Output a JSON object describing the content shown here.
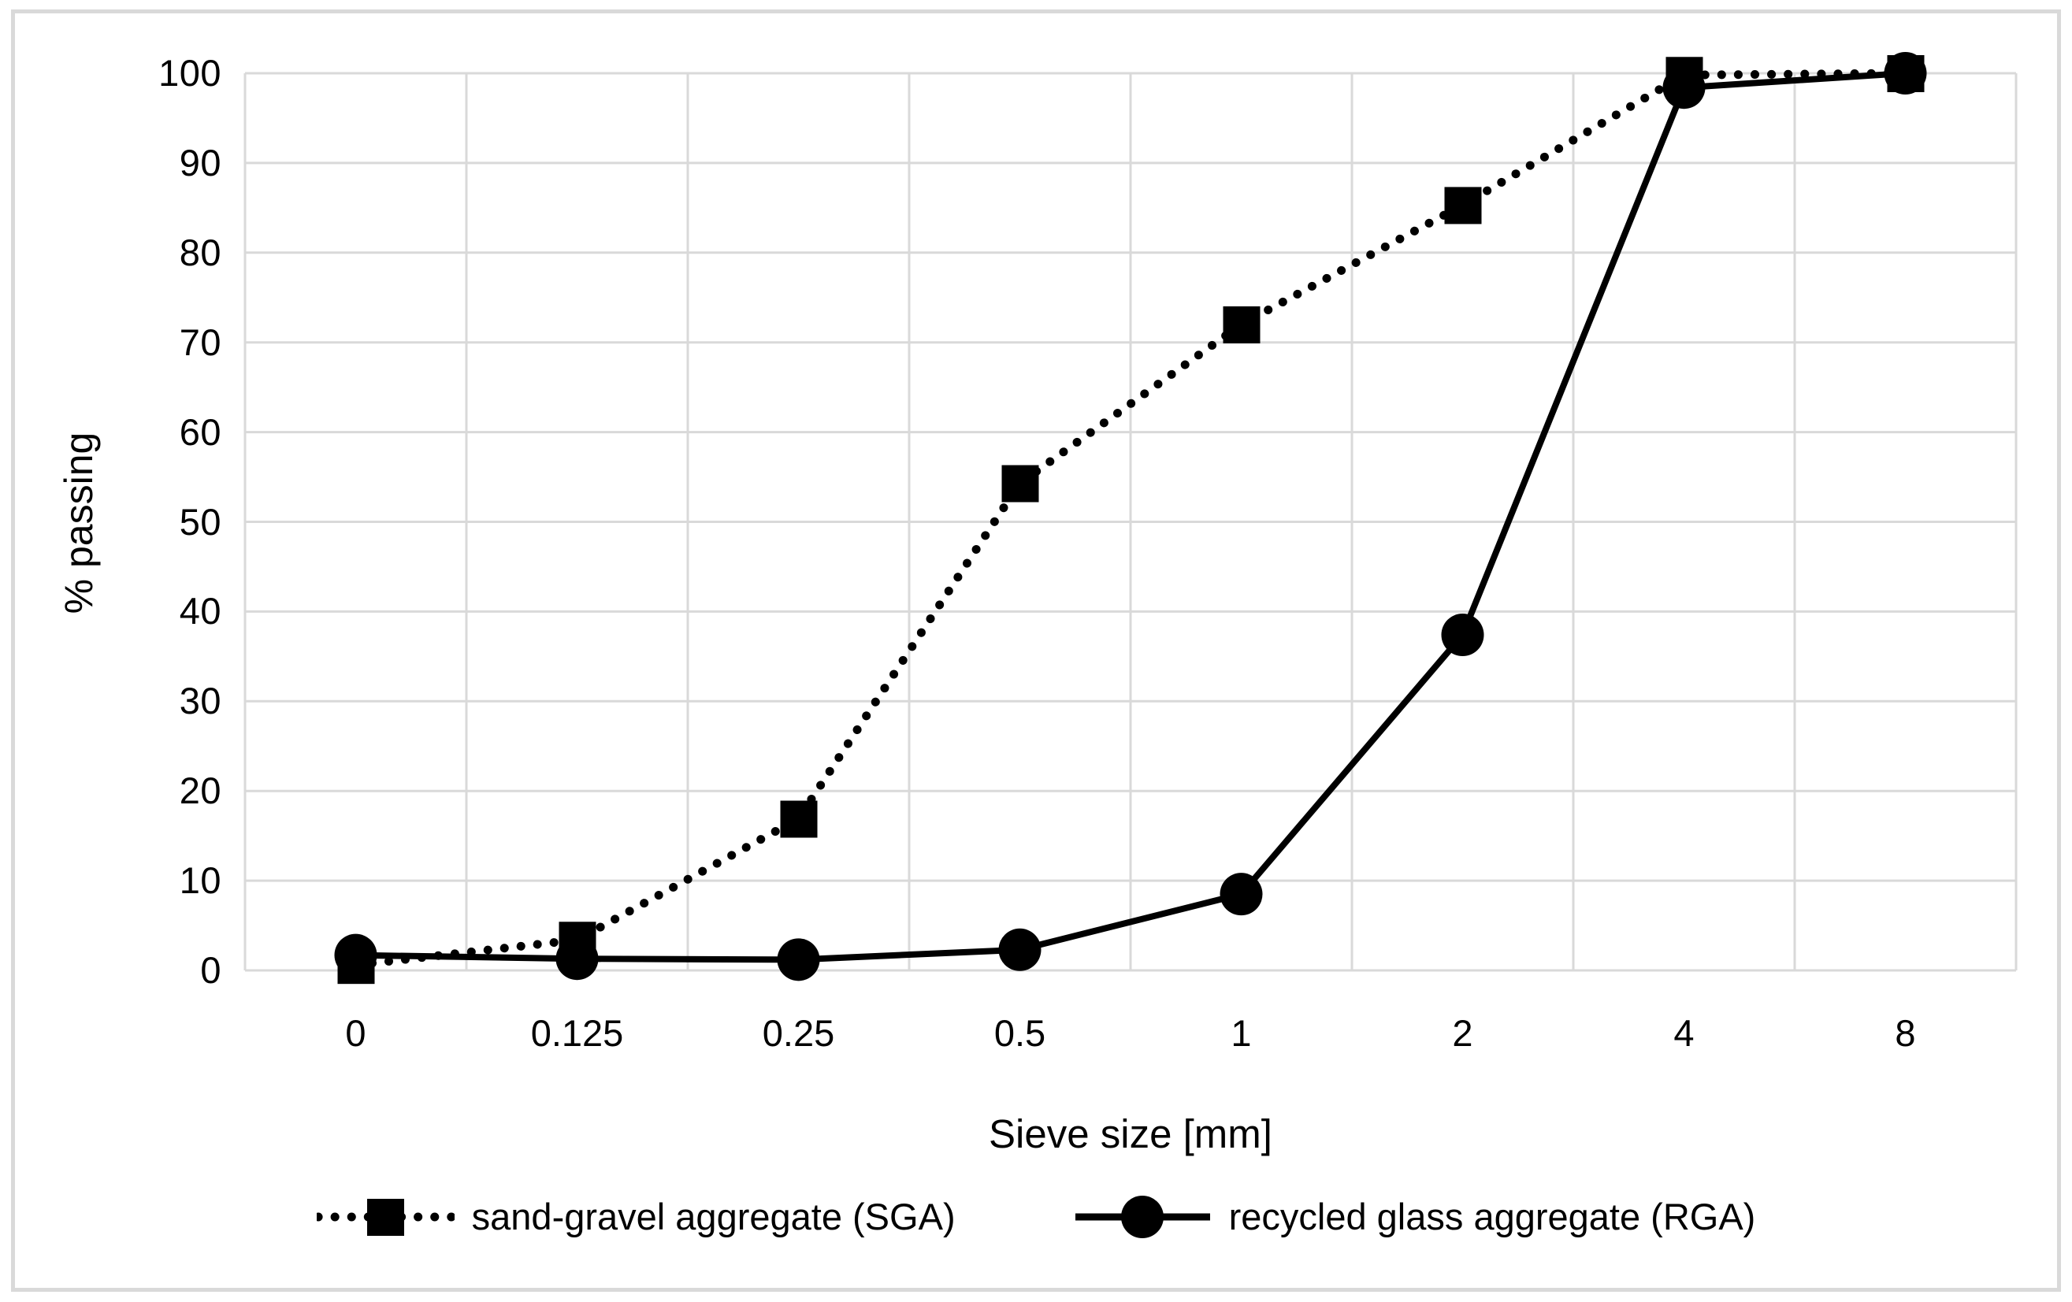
{
  "chart_data": {
    "type": "line",
    "title": "",
    "xlabel": "Sieve size [mm]",
    "ylabel": "% passing",
    "categories": [
      "0",
      "0.125",
      "0.25",
      "0.5",
      "1",
      "2",
      "4",
      "8"
    ],
    "yticks": [
      0,
      10,
      20,
      30,
      40,
      50,
      60,
      70,
      80,
      90,
      100
    ],
    "ylim": [
      0,
      100
    ],
    "grid": true,
    "legend_position": "bottom",
    "series": [
      {
        "name": "sand-gravel aggregate (SGA)",
        "marker": "square",
        "line": "dotted",
        "values": [
          0.6,
          3.4,
          16.9,
          54.3,
          72.0,
          85.3,
          99.8,
          100
        ]
      },
      {
        "name": "recycled glass aggregate (RGA)",
        "marker": "circle",
        "line": "solid",
        "values": [
          1.7,
          1.3,
          1.2,
          2.3,
          8.5,
          37.4,
          98.4,
          100
        ]
      }
    ],
    "colors": {
      "series": "#000000",
      "gridline": "#d9d9d9",
      "frame": "#d9d9d9",
      "text": "#000000"
    }
  }
}
